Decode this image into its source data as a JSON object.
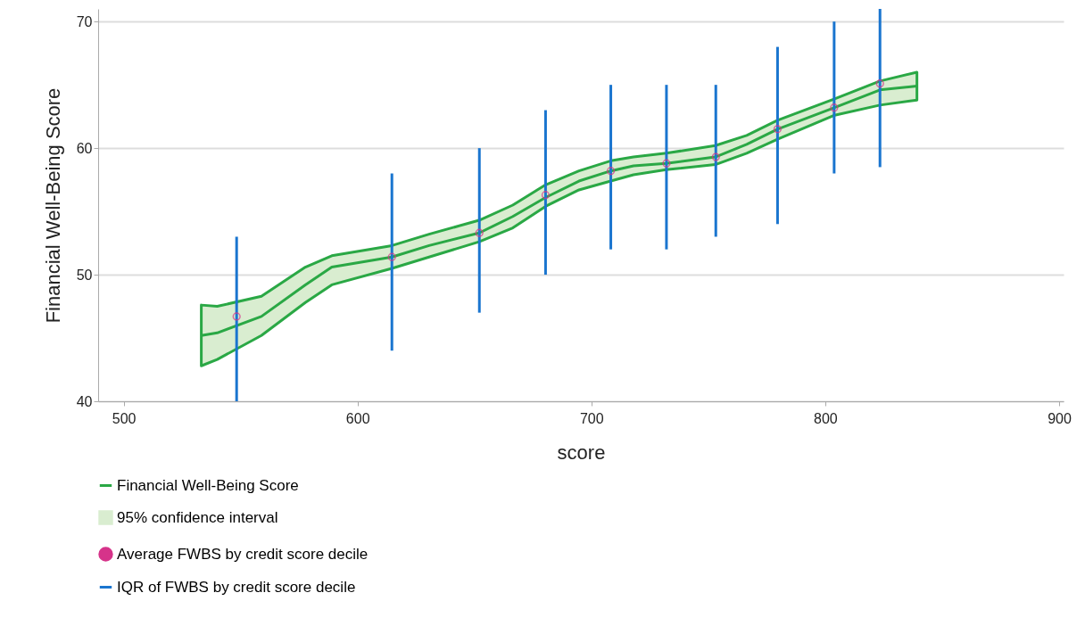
{
  "chart_data": {
    "type": "line",
    "xlabel": "score",
    "ylabel": "Financial Well-Being Score",
    "xlim": [
      491,
      900
    ],
    "xticks": [
      500,
      600,
      700,
      800,
      900
    ],
    "ylim": [
      40,
      71
    ],
    "yticks": [
      40,
      50,
      60,
      70
    ],
    "grid": "y",
    "legend": "bottom",
    "series": [
      {
        "name": "Financial Well-Being Score",
        "type": "line",
        "color": "#2aa845",
        "lower": [
          42.8,
          43.3,
          45.2,
          47.8,
          49.2,
          50.5,
          51.4,
          52.6,
          53.7,
          55.4,
          56.7,
          57.4,
          57.9,
          58.3,
          58.7,
          59.6,
          60.7,
          62.6,
          63.4,
          63.8
        ],
        "upper": [
          47.6,
          47.5,
          48.3,
          50.6,
          51.5,
          52.3,
          53.2,
          54.3,
          55.5,
          57.1,
          58.2,
          59.0,
          59.3,
          59.6,
          60.2,
          61.0,
          62.2,
          63.9,
          65.3,
          66.0
        ],
        "x": [
          533.2,
          540,
          558.9,
          577.7,
          589,
          614.7,
          630.6,
          652,
          666.4,
          680.4,
          694.7,
          708.3,
          718,
          732,
          753,
          766.4,
          779.6,
          804,
          823.4,
          839.2
        ],
        "values": [
          45.2,
          45.4,
          46.7,
          49.2,
          50.6,
          51.4,
          52.3,
          53.3,
          54.6,
          56.1,
          57.4,
          58.2,
          58.6,
          58.8,
          59.3,
          60.3,
          61.5,
          63.2,
          64.6,
          64.9
        ]
      },
      {
        "name": "95% confidence interval",
        "type": "area",
        "color": "#d9edd0"
      },
      {
        "name": "Average FWBS by credit score decile",
        "type": "scatter",
        "color": "#d6338a",
        "marker": "circle",
        "x": [
          548.3,
          614.7,
          652.1,
          680.4,
          708.3,
          732.1,
          753.2,
          779.6,
          803.8,
          823.4
        ],
        "values": [
          46.7,
          51.4,
          53.3,
          56.3,
          58.2,
          58.8,
          59.3,
          61.5,
          63.2,
          65.1
        ]
      },
      {
        "name": "IQR of FWBS by credit score decile",
        "type": "bar",
        "color": "#1a75cf",
        "x": [
          548.3,
          614.7,
          652.1,
          680.4,
          708.3,
          732.1,
          753.2,
          779.6,
          803.8,
          823.4
        ],
        "base": [
          40,
          44,
          47,
          50,
          52,
          52,
          53,
          54,
          58,
          58.5
        ],
        "values": [
          13,
          14,
          13,
          13,
          13,
          13,
          12,
          14,
          12,
          12.5
        ]
      }
    ]
  }
}
